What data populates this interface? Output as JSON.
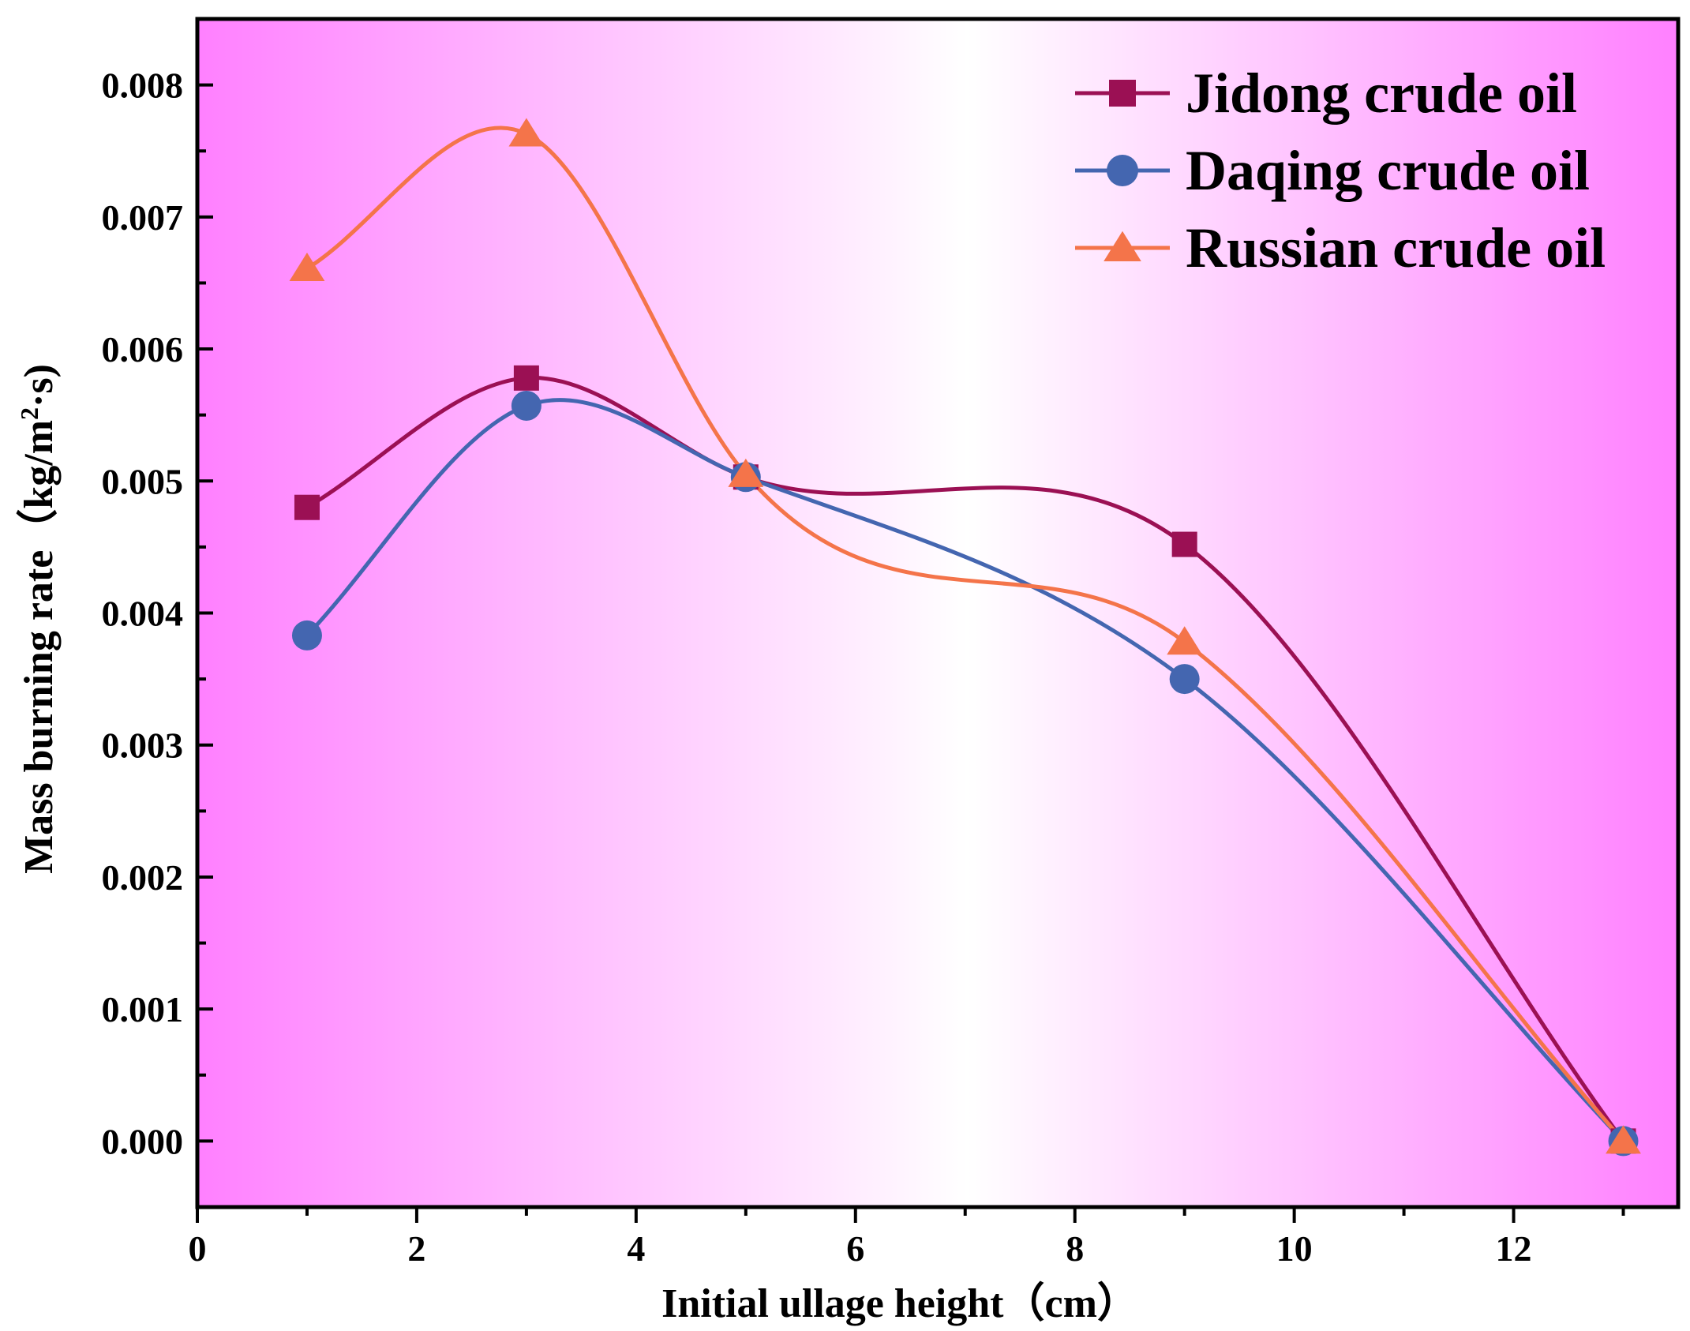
{
  "chart_data": {
    "type": "line",
    "xlabel": "Initial ullage height（cm）",
    "ylabel_main": "Mass burning rate（kg/m",
    "ylabel_sup": "2",
    "ylabel_end": "·s)",
    "xlim": [
      0,
      13.5
    ],
    "ylim": [
      -0.0005,
      0.0085
    ],
    "x_ticks": [
      0,
      2,
      4,
      6,
      8,
      10,
      12
    ],
    "x_tick_labels": [
      "0",
      "2",
      "4",
      "6",
      "8",
      "10",
      "12"
    ],
    "y_ticks": [
      0,
      0.001,
      0.002,
      0.003,
      0.004,
      0.005,
      0.006,
      0.007,
      0.008
    ],
    "y_tick_labels": [
      "0.000",
      "0.001",
      "0.002",
      "0.003",
      "0.004",
      "0.005",
      "0.006",
      "0.007",
      "0.008"
    ],
    "x": [
      1,
      3,
      5,
      9,
      13
    ],
    "series": [
      {
        "name": "Jidong crude oil",
        "marker": "square",
        "color": "#9b1054",
        "values": [
          0.0048,
          0.00578,
          0.00503,
          0.00452,
          0.0
        ]
      },
      {
        "name": "Daqing crude oil",
        "marker": "circle",
        "color": "#4466b0",
        "values": [
          0.00383,
          0.00557,
          0.00503,
          0.0035,
          0.0
        ]
      },
      {
        "name": "Russian crude oil",
        "marker": "triangle",
        "color": "#f4744a",
        "values": [
          0.00661,
          0.00763,
          0.00505,
          0.00378,
          0.0
        ]
      }
    ],
    "legend_position": "top-right",
    "background_gradient": [
      "#ff80ff",
      "#ffffff",
      "#ff80ff"
    ],
    "grid": false
  }
}
